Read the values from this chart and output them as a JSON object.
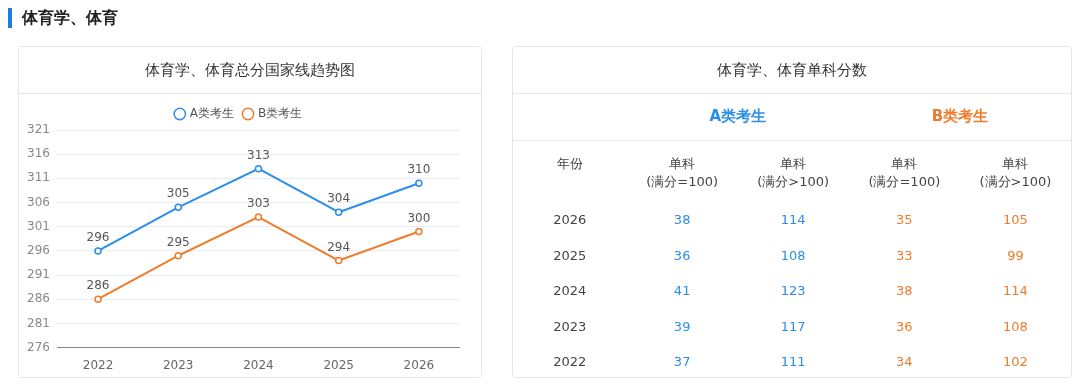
{
  "chart_data": [
    {
      "type": "line",
      "title": "体育学、体育总分国家线趋势图",
      "annotations": [
        "体育学、体育"
      ],
      "categories": [
        "2022",
        "2023",
        "2024",
        "2025",
        "2026"
      ],
      "series": [
        {
          "name": "A类考生",
          "color": "#2b8ee8",
          "values": [
            296,
            305,
            313,
            304,
            310
          ]
        },
        {
          "name": "B类考生",
          "color": "#f07b2c",
          "values": [
            286,
            295,
            303,
            294,
            300
          ]
        }
      ],
      "ylim": [
        276,
        321
      ],
      "yticks": [
        276,
        281,
        286,
        291,
        296,
        301,
        306,
        311,
        316,
        321
      ],
      "grid": "y",
      "legend": "top",
      "marker": "circle",
      "data_labels": true
    },
    {
      "type": "heatmap",
      "title": "体育学、体育单科分数",
      "ylabel": "年份",
      "annotations": [
        "A类考生",
        "B类考生"
      ],
      "categories": [
        "单科\n(满分=100)",
        "单科\n(满分>100)",
        "单科\n(满分=100)",
        "单科\n(满分>100)"
      ],
      "colors": [
        "#2b8ee8",
        "#2b8ee8",
        "#f07b2c",
        "#f07b2c"
      ],
      "data_labels": true,
      "y_categories": [
        "2026",
        "2025",
        "2024",
        "2023",
        "2022"
      ],
      "cells": [
        [
          38,
          114,
          35,
          105
        ],
        [
          36,
          108,
          33,
          99
        ],
        [
          41,
          123,
          38,
          114
        ],
        [
          39,
          117,
          36,
          108
        ],
        [
          37,
          111,
          34,
          102
        ]
      ]
    }
  ]
}
